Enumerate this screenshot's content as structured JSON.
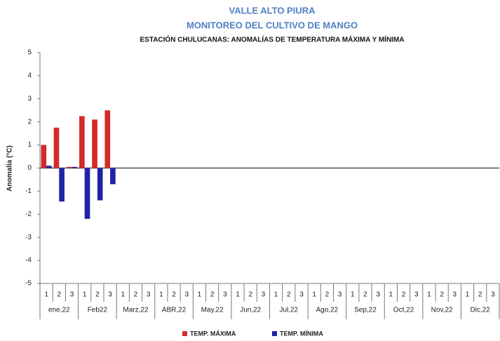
{
  "chart_data": {
    "type": "bar",
    "title": "VALLE ALTO PIURA",
    "subtitle": "MONITOREO DEL CULTIVO DE MANGO",
    "chart_title": "ESTACIÓN CHULUCANAS: ANOMALÍAS DE TEMPERATURA MÁXIMA Y MÍNIMA",
    "y_label": "Anomalía (°C)",
    "categories": [
      "1",
      "2",
      "3",
      "1",
      "2",
      "3",
      "1",
      "2",
      "3",
      "1",
      "2",
      "3",
      "1",
      "2",
      "3",
      "1",
      "2",
      "3",
      "1",
      "2",
      "3",
      "1",
      "2",
      "3",
      "1",
      "2",
      "3",
      "1",
      "2",
      "3",
      "1",
      "2",
      "3",
      "1",
      "2",
      "3"
    ],
    "groups": [
      "ene,22",
      "Feb22",
      "Marz,22",
      "ABR,22",
      "May,22",
      "Jun,22",
      "Jul,22",
      "Ago,22",
      "Sep,22",
      "Oct,22",
      "Nov,22",
      "Dic,22"
    ],
    "series": [
      {
        "name": "TEMP. MÁXIMA",
        "color": "#d42a2a",
        "values": [
          1.0,
          1.75,
          0.05,
          2.25,
          2.1,
          2.5,
          null,
          null,
          null,
          null,
          null,
          null,
          null,
          null,
          null,
          null,
          null,
          null,
          null,
          null,
          null,
          null,
          null,
          null,
          null,
          null,
          null,
          null,
          null,
          null,
          null,
          null,
          null,
          null,
          null,
          null
        ]
      },
      {
        "name": "TEMP. MÍNIMA",
        "color": "#1f22a8",
        "values": [
          0.1,
          -1.45,
          0.05,
          -2.2,
          -1.4,
          -0.7,
          null,
          null,
          null,
          null,
          null,
          null,
          null,
          null,
          null,
          null,
          null,
          null,
          null,
          null,
          null,
          null,
          null,
          null,
          null,
          null,
          null,
          null,
          null,
          null,
          null,
          null,
          null,
          null,
          null,
          null
        ]
      }
    ],
    "ylim": [
      -5,
      5
    ],
    "yticks": [
      -5,
      -4,
      -3,
      -2,
      -1,
      0,
      1,
      2,
      3,
      4,
      5
    ]
  }
}
